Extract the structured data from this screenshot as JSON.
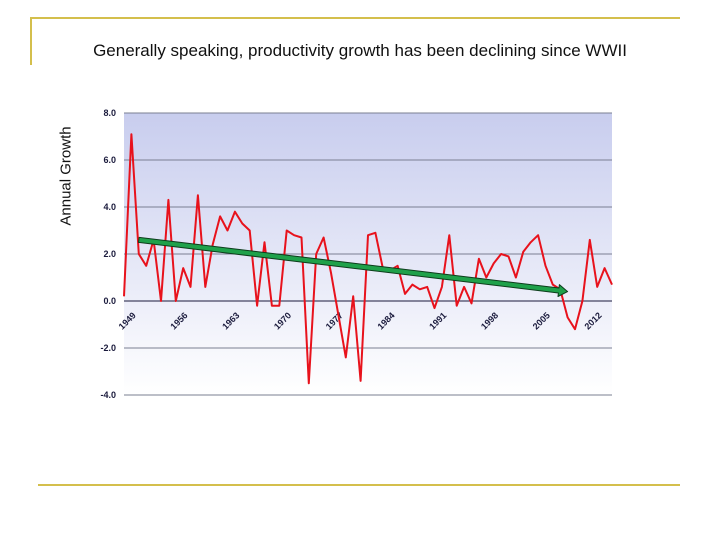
{
  "slide": {
    "headline": "Generally speaking, productivity growth has been declining since WWII",
    "accent_color": "#d4bf4c"
  },
  "chart_data": {
    "type": "line",
    "title": "",
    "xlabel": "",
    "ylabel": "Annual Growth",
    "xlim": [
      1948,
      2014
    ],
    "ylim": [
      -4.0,
      8.0
    ],
    "y_ticks": [
      "8.0",
      "6.0",
      "4.0",
      "2.0",
      "0.0",
      "-2.0",
      "-4.0"
    ],
    "x_ticks": [
      "1949",
      "1956",
      "1963",
      "1970",
      "1977",
      "1984",
      "1991",
      "1998",
      "2005",
      "2012"
    ],
    "grid": true,
    "legend": "none",
    "background_top_color": "#c8cdee",
    "background_bottom_color": "#ffffff",
    "series": [
      {
        "color": "#e8121c",
        "x": [
          1948,
          1949,
          1950,
          1951,
          1952,
          1953,
          1954,
          1955,
          1956,
          1957,
          1958,
          1959,
          1960,
          1961,
          1962,
          1963,
          1964,
          1965,
          1966,
          1967,
          1968,
          1969,
          1970,
          1971,
          1972,
          1973,
          1974,
          1975,
          1976,
          1977,
          1978,
          1979,
          1980,
          1981,
          1982,
          1983,
          1984,
          1985,
          1986,
          1987,
          1988,
          1989,
          1990,
          1991,
          1992,
          1993,
          1994,
          1995,
          1996,
          1997,
          1998,
          1999,
          2000,
          2001,
          2002,
          2003,
          2004,
          2005,
          2006,
          2007,
          2008,
          2009,
          2010,
          2011,
          2012,
          2013,
          2014
        ],
        "y": [
          0.2,
          7.1,
          2.0,
          1.5,
          2.6,
          0.0,
          4.3,
          0.0,
          1.4,
          0.6,
          4.5,
          0.6,
          2.4,
          3.6,
          3.0,
          3.8,
          3.3,
          3.0,
          -0.2,
          2.5,
          -0.2,
          -0.2,
          3.0,
          2.8,
          2.7,
          -3.5,
          2.0,
          2.7,
          1.2,
          -0.6,
          -2.4,
          0.2,
          -3.4,
          2.8,
          2.9,
          1.4,
          1.3,
          1.5,
          0.3,
          0.7,
          0.5,
          0.6,
          -0.3,
          0.6,
          2.8,
          -0.2,
          0.6,
          -0.1,
          1.8,
          1.0,
          1.6,
          2.0,
          1.9,
          1.0,
          2.1,
          2.5,
          2.8,
          1.5,
          0.7,
          0.5,
          -0.7,
          -1.2,
          0.0,
          2.6,
          0.6,
          1.4,
          0.7
        ]
      }
    ],
    "trend": {
      "x": [
        1950,
        2008
      ],
      "y": [
        2.6,
        0.4
      ],
      "color": "#1fa14a"
    }
  }
}
